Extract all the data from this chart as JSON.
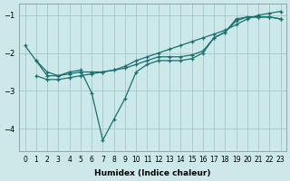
{
  "xlabel": "Humidex (Indice chaleur)",
  "ylabel": "",
  "bg_color": "#cce8e8",
  "grid_color": "#aacccc",
  "line_color": "#1a7070",
  "xlim": [
    -0.5,
    23.5
  ],
  "ylim": [
    -4.6,
    -0.7
  ],
  "xticks": [
    0,
    1,
    2,
    3,
    4,
    5,
    6,
    7,
    8,
    9,
    10,
    11,
    12,
    13,
    14,
    15,
    16,
    17,
    18,
    19,
    20,
    21,
    22,
    23
  ],
  "yticks": [
    -4,
    -3,
    -2,
    -1
  ],
  "series": [
    {
      "x": [
        0,
        1,
        2,
        3,
        4,
        5,
        6,
        7,
        8,
        9,
        10,
        11,
        12,
        13,
        14,
        15,
        16,
        17,
        18,
        19,
        20,
        21,
        22,
        23
      ],
      "y": [
        -1.8,
        -2.2,
        -2.6,
        -2.6,
        -2.5,
        -2.45,
        -3.05,
        -4.3,
        -3.75,
        -3.2,
        -2.5,
        -2.3,
        -2.2,
        -2.2,
        -2.2,
        -2.15,
        -2.0,
        -1.6,
        -1.45,
        -1.1,
        -1.05,
        -1.05,
        -1.05,
        -1.1
      ]
    },
    {
      "x": [
        1,
        2,
        3,
        4,
        5,
        6,
        7,
        8,
        9,
        10,
        11,
        12,
        13,
        14,
        15,
        16,
        17,
        18,
        19,
        20,
        21,
        22,
        23
      ],
      "y": [
        -2.2,
        -2.5,
        -2.6,
        -2.55,
        -2.5,
        -2.5,
        -2.5,
        -2.45,
        -2.4,
        -2.3,
        -2.2,
        -2.1,
        -2.1,
        -2.1,
        -2.05,
        -1.95,
        -1.6,
        -1.45,
        -1.15,
        -1.05,
        -1.05,
        -1.05,
        -1.1
      ]
    },
    {
      "x": [
        1,
        2,
        3,
        4,
        5,
        6,
        7,
        8,
        9,
        10,
        11,
        12,
        13,
        14,
        15,
        16,
        17,
        18,
        19,
        20,
        21,
        22,
        23
      ],
      "y": [
        -2.6,
        -2.7,
        -2.7,
        -2.65,
        -2.6,
        -2.55,
        -2.5,
        -2.45,
        -2.35,
        -2.2,
        -2.1,
        -2.0,
        -1.9,
        -1.8,
        -1.7,
        -1.6,
        -1.5,
        -1.4,
        -1.25,
        -1.1,
        -1.0,
        -0.95,
        -0.9
      ]
    }
  ]
}
